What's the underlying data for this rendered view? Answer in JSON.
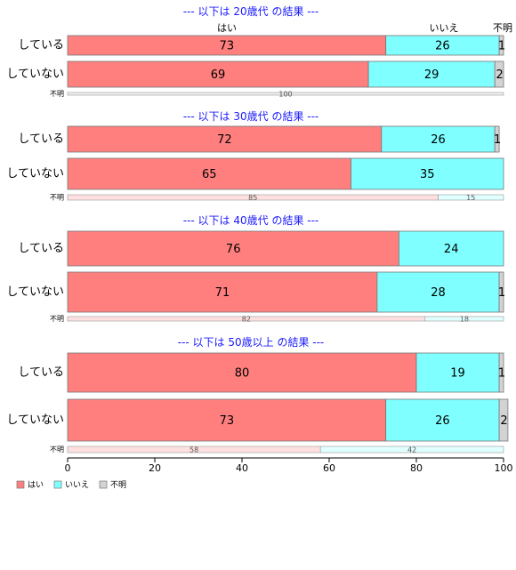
{
  "chart_data": {
    "type": "bar",
    "orientation": "horizontal",
    "stacked": true,
    "percent": true,
    "xlim": [
      0,
      100
    ],
    "x_ticks": [
      0,
      20,
      40,
      60,
      80,
      100
    ],
    "column_headers": [
      "はい",
      "いいえ",
      "不明"
    ],
    "legend": {
      "placement": "bottom-left",
      "items": [
        {
          "label": "はい",
          "color": "#ff7f7f"
        },
        {
          "label": "いいえ",
          "color": "#7fffff"
        },
        {
          "label": "不明",
          "color": "#d3d3d3"
        }
      ]
    },
    "colors": {
      "yes": "#ff7f7f",
      "no": "#7fffff",
      "unknown": "#d3d3d3",
      "title": "#1a1aff"
    },
    "panels": [
      {
        "title": "--- 以下は 20歳代 の結果 ---",
        "rows": [
          {
            "label": "している",
            "values": [
              73,
              26,
              1
            ]
          },
          {
            "label": "していない",
            "values": [
              69,
              29,
              2
            ]
          }
        ],
        "summary": {
          "label": "不明",
          "values": [
            0,
            0,
            100
          ],
          "value_labels": [
            "",
            "",
            "100"
          ]
        }
      },
      {
        "title": "--- 以下は 30歳代 の結果 ---",
        "rows": [
          {
            "label": "している",
            "values": [
              72,
              26,
              1
            ]
          },
          {
            "label": "していない",
            "values": [
              65,
              35,
              0
            ]
          }
        ],
        "summary": {
          "label": "不明",
          "values": [
            85,
            15,
            0
          ],
          "value_labels": [
            "85",
            "15",
            ""
          ]
        }
      },
      {
        "title": "--- 以下は 40歳代 の結果 ---",
        "rows": [
          {
            "label": "している",
            "values": [
              76,
              24,
              0
            ]
          },
          {
            "label": "していない",
            "values": [
              71,
              28,
              1
            ]
          }
        ],
        "summary": {
          "label": "不明",
          "values": [
            82,
            18,
            0
          ],
          "value_labels": [
            "82",
            "18",
            ""
          ]
        }
      },
      {
        "title": "--- 以下は 50歳以上 の結果 ---",
        "rows": [
          {
            "label": "している",
            "values": [
              80,
              19,
              1
            ]
          },
          {
            "label": "していない",
            "values": [
              73,
              26,
              2
            ]
          }
        ],
        "summary": {
          "label": "不明",
          "values": [
            58,
            42,
            0
          ],
          "value_labels": [
            "58",
            "42",
            ""
          ]
        }
      }
    ]
  }
}
